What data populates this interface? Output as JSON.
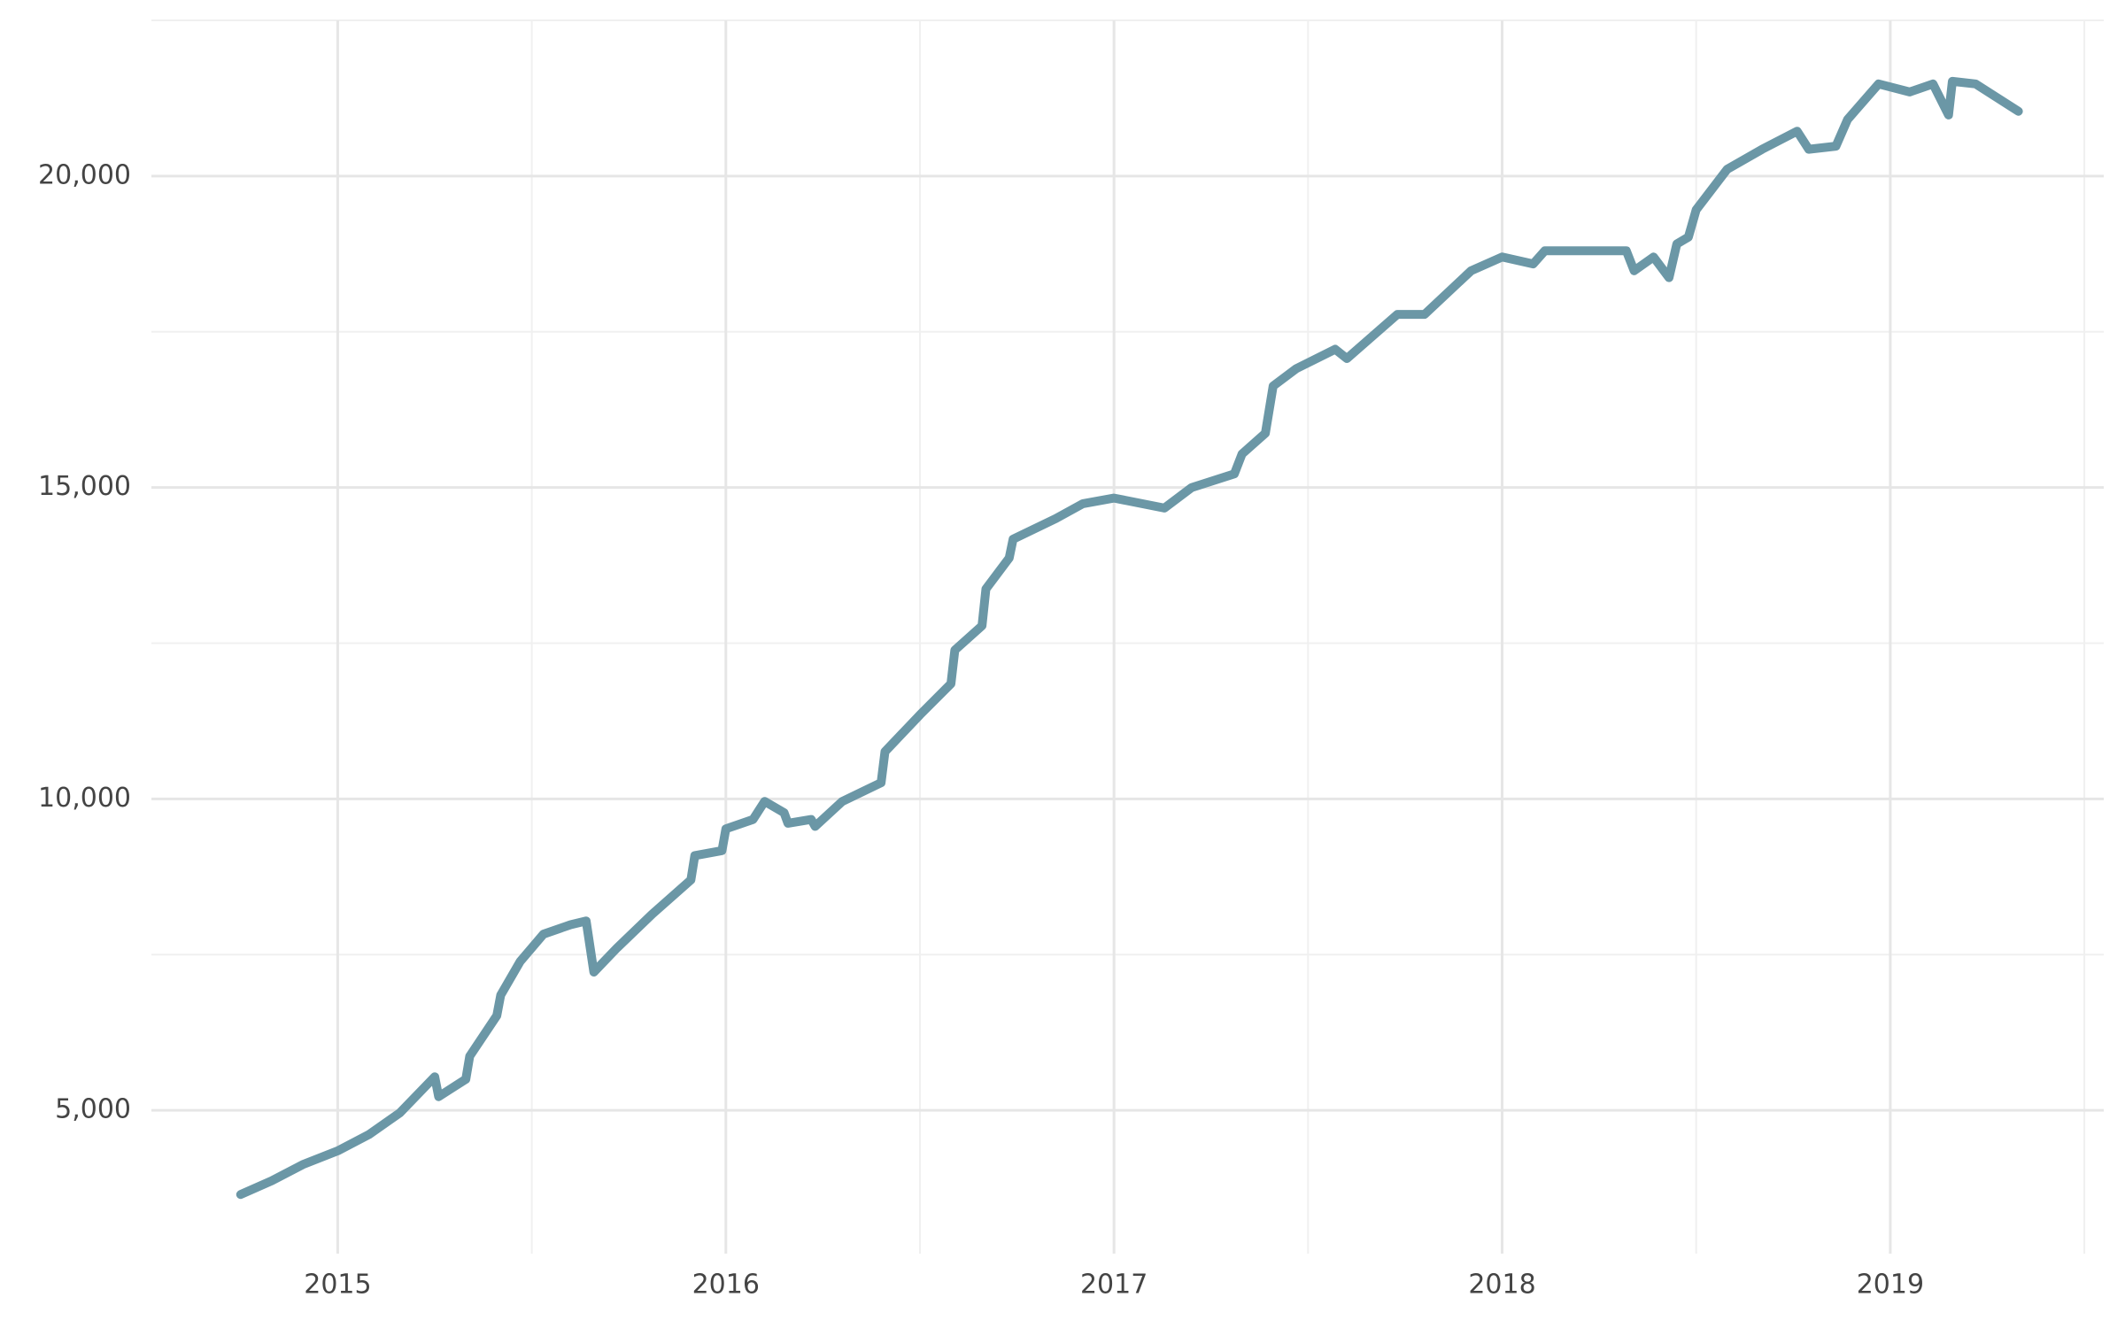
{
  "chart_data": {
    "type": "line",
    "x": [
      2014.75,
      2014.83,
      2014.91,
      2015.0,
      2015.08,
      2015.16,
      2015.25,
      2015.26,
      2015.33,
      2015.34,
      2015.41,
      2015.42,
      2015.47,
      2015.53,
      2015.6,
      2015.64,
      2015.66,
      2015.72,
      2015.81,
      2015.91,
      2015.92,
      2015.99,
      2016.0,
      2016.07,
      2016.1,
      2016.15,
      2016.16,
      2016.22,
      2016.23,
      2016.3,
      2016.4,
      2016.41,
      2016.5,
      2016.58,
      2016.59,
      2016.66,
      2016.67,
      2016.73,
      2016.74,
      2016.85,
      2016.92,
      2017.0,
      2017.13,
      2017.2,
      2017.31,
      2017.33,
      2017.39,
      2017.41,
      2017.47,
      2017.57,
      2017.6,
      2017.73,
      2017.8,
      2017.92,
      2018.0,
      2018.08,
      2018.11,
      2018.32,
      2018.34,
      2018.39,
      2018.43,
      2018.45,
      2018.48,
      2018.5,
      2018.58,
      2018.67,
      2018.76,
      2018.79,
      2018.86,
      2018.89,
      2018.97,
      2019.05,
      2019.11,
      2019.15,
      2019.16,
      2019.22,
      2019.33
    ],
    "series": [
      {
        "color": "#6b97a6",
        "values": [
          3650,
          3870,
          4130,
          4350,
          4610,
          4960,
          5540,
          5220,
          5500,
          5870,
          6520,
          6850,
          7390,
          7830,
          7980,
          8040,
          7220,
          7610,
          8150,
          8700,
          9090,
          9170,
          9520,
          9670,
          9960,
          9780,
          9610,
          9670,
          9560,
          9960,
          10260,
          10760,
          11350,
          11850,
          12390,
          12780,
          13370,
          13870,
          14170,
          14500,
          14740,
          14830,
          14670,
          15000,
          15220,
          15540,
          15870,
          16630,
          16910,
          17220,
          17070,
          17780,
          17780,
          18480,
          18700,
          18590,
          18800,
          18800,
          18480,
          18700,
          18370,
          18910,
          19020,
          19460,
          20110,
          20430,
          20720,
          20430,
          20480,
          20910,
          21480,
          21350,
          21480,
          20980,
          21520,
          21480,
          21040
        ]
      }
    ],
    "xlim": [
      2014.52,
      2019.55
    ],
    "xticks": [
      2015,
      2016,
      2017,
      2018,
      2019
    ],
    "ylim": [
      2700,
      22500
    ],
    "yticks": [
      {
        "value": 5000,
        "label": "5,000"
      },
      {
        "value": 10000,
        "label": "10,000"
      },
      {
        "value": 15000,
        "label": "15,000"
      },
      {
        "value": 20000,
        "label": "20,000"
      }
    ],
    "grid": true
  }
}
